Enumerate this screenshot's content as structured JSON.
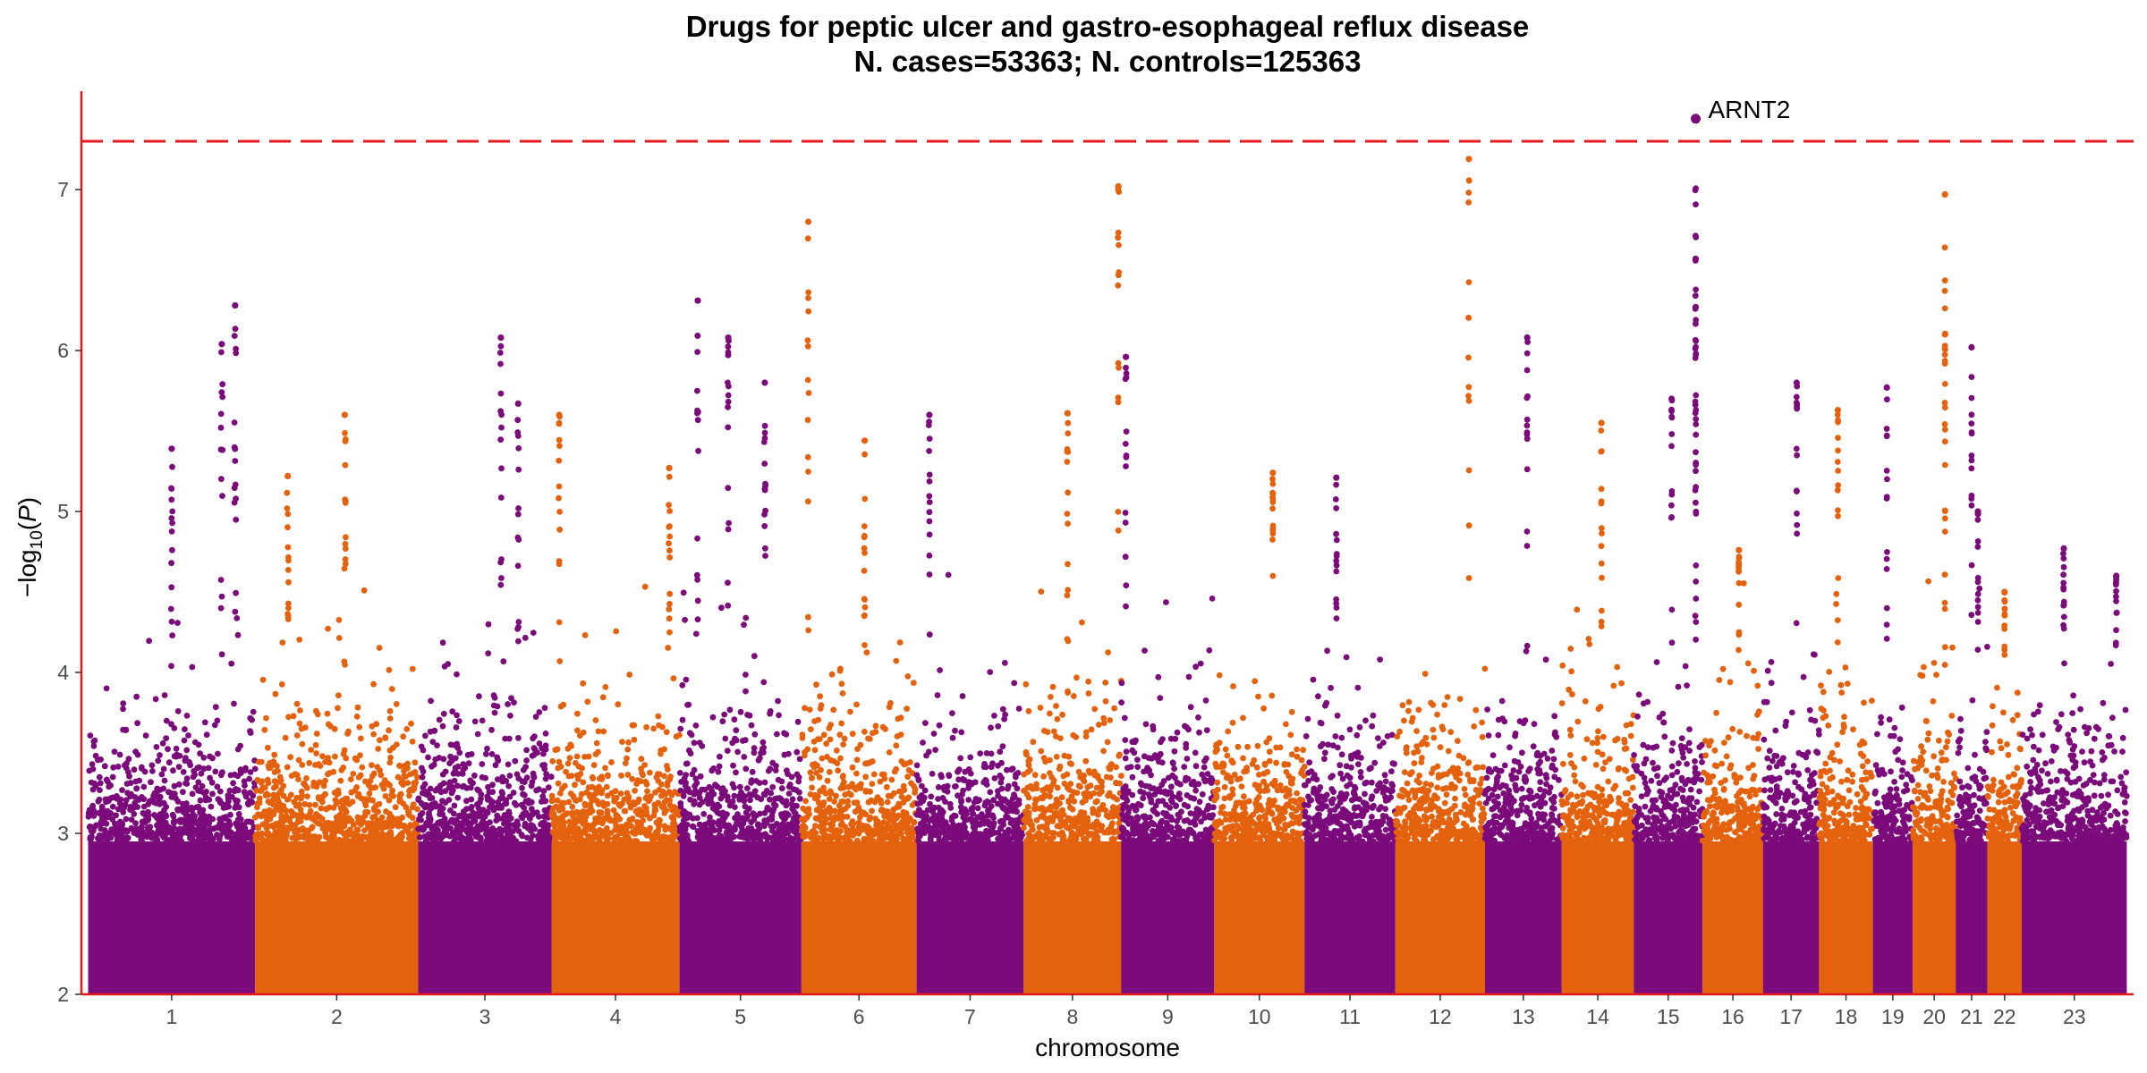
{
  "chart_data": {
    "type": "scatter",
    "subtype": "manhattan",
    "title": "Drugs for peptic ulcer and gastro-esophageal reflux disease",
    "subtitle": "N. cases=53363; N. controls=125363",
    "xlabel": "chromosome",
    "ylabel": "−log10(P)",
    "ylabel_main": "−log",
    "ylabel_sub": "10",
    "ylabel_open": "(",
    "ylabel_var": "P",
    "ylabel_close": ")",
    "ylim": [
      2,
      7.6
    ],
    "yticks": [
      "2",
      "3",
      "4",
      "5",
      "6",
      "7"
    ],
    "significance_threshold": 7.3,
    "colors": {
      "odd": "#7b0a7b",
      "even": "#e4620e",
      "threshold": "#e41a1c",
      "axis": "#e41a1c"
    },
    "chromosomes": [
      {
        "label": "1",
        "start": 0,
        "length": 248,
        "peaks": [
          {
            "pos": 0.5,
            "p": 5.39
          },
          {
            "pos": 0.88,
            "p": 6.28
          },
          {
            "pos": 0.8,
            "p": 6.04
          }
        ]
      },
      {
        "label": "2",
        "start": 248,
        "length": 242,
        "peaks": [
          {
            "pos": 0.55,
            "p": 5.6
          },
          {
            "pos": 0.2,
            "p": 5.22
          }
        ]
      },
      {
        "label": "3",
        "start": 490,
        "length": 198,
        "peaks": [
          {
            "pos": 0.62,
            "p": 6.08
          },
          {
            "pos": 0.75,
            "p": 5.67
          }
        ]
      },
      {
        "label": "4",
        "start": 688,
        "length": 190,
        "peaks": [
          {
            "pos": 0.06,
            "p": 5.6
          },
          {
            "pos": 0.92,
            "p": 5.27
          }
        ]
      },
      {
        "label": "5",
        "start": 878,
        "length": 181,
        "peaks": [
          {
            "pos": 0.15,
            "p": 6.31
          },
          {
            "pos": 0.4,
            "p": 6.08
          },
          {
            "pos": 0.7,
            "p": 5.8
          }
        ]
      },
      {
        "label": "6",
        "start": 1059,
        "length": 171,
        "peaks": [
          {
            "pos": 0.06,
            "p": 6.8
          },
          {
            "pos": 0.55,
            "p": 5.44
          }
        ]
      },
      {
        "label": "7",
        "start": 1230,
        "length": 159,
        "peaks": [
          {
            "pos": 0.12,
            "p": 5.6
          }
        ]
      },
      {
        "label": "8",
        "start": 1389,
        "length": 145,
        "peaks": [
          {
            "pos": 0.45,
            "p": 5.61
          },
          {
            "pos": 0.97,
            "p": 7.02
          }
        ]
      },
      {
        "label": "9",
        "start": 1534,
        "length": 138,
        "peaks": [
          {
            "pos": 0.05,
            "p": 5.96
          }
        ]
      },
      {
        "label": "10",
        "start": 1672,
        "length": 134,
        "peaks": [
          {
            "pos": 0.65,
            "p": 5.24
          }
        ]
      },
      {
        "label": "11",
        "start": 1806,
        "length": 135,
        "peaks": [
          {
            "pos": 0.35,
            "p": 5.21
          }
        ]
      },
      {
        "label": "12",
        "start": 1941,
        "length": 133,
        "peaks": [
          {
            "pos": 0.82,
            "p": 7.19
          }
        ]
      },
      {
        "label": "13",
        "start": 2074,
        "length": 114,
        "peaks": [
          {
            "pos": 0.55,
            "p": 6.08
          }
        ]
      },
      {
        "label": "14",
        "start": 2188,
        "length": 107,
        "peaks": [
          {
            "pos": 0.55,
            "p": 5.55
          }
        ]
      },
      {
        "label": "15",
        "start": 2295,
        "length": 102,
        "peaks": [
          {
            "pos": 0.9,
            "p": 7.44,
            "label": "ARNT2"
          },
          {
            "pos": 0.9,
            "p": 6.57
          },
          {
            "pos": 0.9,
            "p": 6.27
          },
          {
            "pos": 0.55,
            "p": 5.7
          }
        ]
      },
      {
        "label": "16",
        "start": 2397,
        "length": 90,
        "peaks": [
          {
            "pos": 0.6,
            "p": 4.76
          }
        ]
      },
      {
        "label": "17",
        "start": 2487,
        "length": 83,
        "peaks": [
          {
            "pos": 0.6,
            "p": 5.8
          }
        ]
      },
      {
        "label": "18",
        "start": 2570,
        "length": 80,
        "peaks": [
          {
            "pos": 0.35,
            "p": 5.63
          }
        ]
      },
      {
        "label": "19",
        "start": 2650,
        "length": 59,
        "peaks": [
          {
            "pos": 0.35,
            "p": 5.77
          }
        ]
      },
      {
        "label": "20",
        "start": 2709,
        "length": 64,
        "peaks": [
          {
            "pos": 0.75,
            "p": 6.97
          },
          {
            "pos": 0.75,
            "p": 6.1
          }
        ]
      },
      {
        "label": "21",
        "start": 2773,
        "length": 47,
        "peaks": [
          {
            "pos": 0.5,
            "p": 6.02
          },
          {
            "pos": 0.7,
            "p": 5.0
          }
        ]
      },
      {
        "label": "22",
        "start": 2820,
        "length": 51,
        "peaks": [
          {
            "pos": 0.5,
            "p": 4.5
          }
        ]
      },
      {
        "label": "23",
        "start": 2871,
        "length": 156,
        "peaks": [
          {
            "pos": 0.4,
            "p": 4.77
          },
          {
            "pos": 0.9,
            "p": 4.6
          }
        ]
      }
    ],
    "annotations": [
      {
        "text": "ARNT2",
        "chromosome": "15",
        "p": 7.44
      }
    ]
  }
}
